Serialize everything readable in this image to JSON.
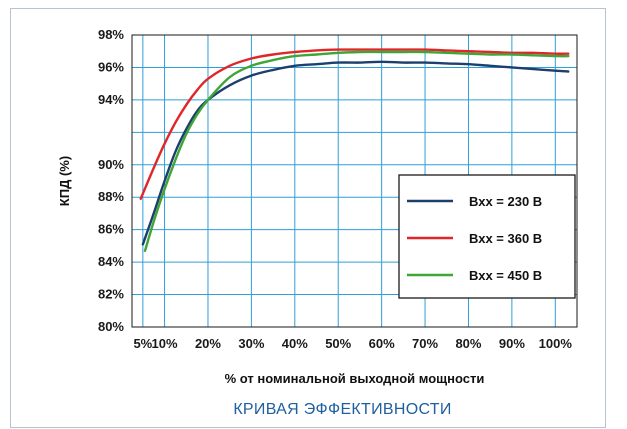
{
  "chart_data": {
    "type": "line",
    "title": "КРИВАЯ ЭФФЕКТИВНОСТИ",
    "xlabel": "% от номинальной выходной мощности",
    "ylabel": "КПД (%)",
    "xlim": [
      2.5,
      105
    ],
    "ylim": [
      80,
      98
    ],
    "x_ticks": [
      5,
      10,
      20,
      30,
      40,
      50,
      60,
      70,
      80,
      90,
      100
    ],
    "x_tick_labels": [
      "5%",
      "10%",
      "20%",
      "30%",
      "40%",
      "50%",
      "60%",
      "70%",
      "80%",
      "90%",
      "100%"
    ],
    "y_ticks": [
      80,
      82,
      84,
      86,
      88,
      90,
      94,
      96,
      98
    ],
    "y_tick_labels": [
      "80%",
      "82%",
      "84%",
      "86%",
      "88%",
      "90%",
      "94%",
      "96%",
      "98%"
    ],
    "grid": true,
    "legend_position": "lower-right",
    "series": [
      {
        "name": "Вхх = 230 В",
        "color": "#1c3f6e",
        "x": [
          5,
          7.5,
          10,
          12.5,
          15,
          17.5,
          20,
          25,
          30,
          35,
          40,
          45,
          50,
          55,
          60,
          65,
          70,
          75,
          80,
          85,
          90,
          95,
          100,
          103
        ],
        "y": [
          85.1,
          87.0,
          89.0,
          90.8,
          92.2,
          93.3,
          94.0,
          94.9,
          95.5,
          95.85,
          96.1,
          96.2,
          96.3,
          96.3,
          96.35,
          96.3,
          96.3,
          96.25,
          96.2,
          96.1,
          96.0,
          95.9,
          95.8,
          95.75
        ]
      },
      {
        "name": "Вхх = 360 В",
        "color": "#e0262b",
        "x": [
          4.5,
          7.5,
          10,
          12.5,
          15,
          17.5,
          20,
          25,
          30,
          35,
          40,
          45,
          50,
          55,
          60,
          65,
          70,
          75,
          80,
          85,
          90,
          95,
          100,
          103
        ],
        "y": [
          87.9,
          89.8,
          91.3,
          92.6,
          93.7,
          94.6,
          95.3,
          96.1,
          96.55,
          96.8,
          96.95,
          97.05,
          97.1,
          97.1,
          97.1,
          97.1,
          97.1,
          97.05,
          97.0,
          96.95,
          96.9,
          96.9,
          96.85,
          96.85
        ]
      },
      {
        "name": "Вхх = 450 В",
        "color": "#3fa535",
        "x": [
          5.5,
          7.5,
          10,
          12.5,
          15,
          17.5,
          20,
          25,
          30,
          35,
          40,
          45,
          50,
          55,
          60,
          65,
          70,
          75,
          80,
          85,
          90,
          95,
          100,
          103
        ],
        "y": [
          84.7,
          86.5,
          88.5,
          90.3,
          91.9,
          93.1,
          94.0,
          95.4,
          96.1,
          96.45,
          96.7,
          96.8,
          96.9,
          96.95,
          96.95,
          96.95,
          96.95,
          96.9,
          96.85,
          96.8,
          96.8,
          96.75,
          96.7,
          96.7
        ]
      }
    ]
  }
}
